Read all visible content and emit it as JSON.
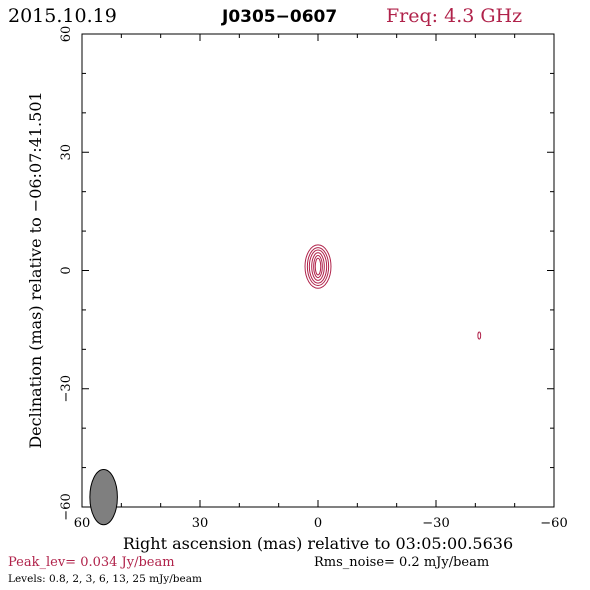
{
  "header": {
    "date": "2015.10.19",
    "source": "J0305−0607",
    "freq_label": "Freq: 4.3 GHz"
  },
  "colors": {
    "accent": "#b0224a",
    "frame": "#000000",
    "beam_fill": "#7f7f7f"
  },
  "chart_data": {
    "type": "contour",
    "xlabel": "Right ascension (mas) relative to 03:05:00.5636",
    "ylabel": "Declination (mas) relative to −06:07:41.501",
    "xlim": [
      60,
      -60
    ],
    "ylim": [
      -60,
      60
    ],
    "x_ticks": [
      60,
      30,
      0,
      -30,
      -60
    ],
    "y_ticks": [
      -60,
      -30,
      0,
      30,
      60
    ],
    "x_tick_labels": [
      "60",
      "30",
      "0",
      "−30",
      "−60"
    ],
    "y_tick_labels": [
      "−60",
      "−30",
      "0",
      "30",
      "60"
    ],
    "grid": false,
    "contour_levels_mJy": [
      0.8,
      2,
      3,
      6,
      13,
      25
    ],
    "components": [
      {
        "name": "core",
        "x": 0,
        "y": 1,
        "rx": [
          0.7,
          1.1,
          1.6,
          2.2,
          2.7,
          3.3
        ],
        "ry": [
          2.1,
          2.8,
          3.5,
          4.2,
          4.8,
          5.5
        ]
      },
      {
        "name": "spot",
        "x": -41,
        "y": -16.5,
        "rx": [
          0.35
        ],
        "ry": [
          0.9
        ]
      }
    ],
    "beam": {
      "x": 54.5,
      "y": -57.5,
      "rx": 1.0,
      "ry": 2.0
    }
  },
  "footer": {
    "peak_label": "Peak_lev=  0.034 Jy/beam",
    "rms_label": "Rms_noise=  0.2 mJy/beam",
    "levels_label": "Levels: 0.8,    2,    3,    6,   13,   25  mJy/beam"
  }
}
